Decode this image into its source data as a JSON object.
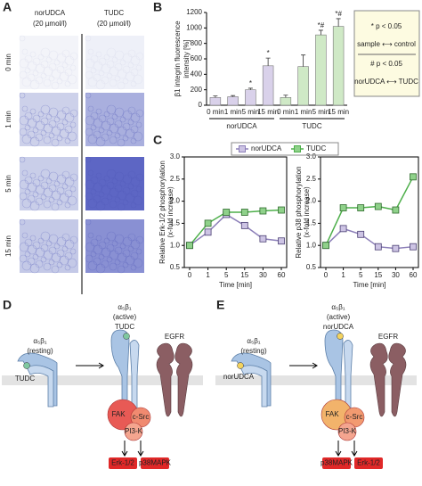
{
  "panel_labels": [
    "A",
    "B",
    "C",
    "D",
    "E"
  ],
  "panel_a": {
    "columns": [
      [
        "norUDCA",
        "(20 µmol/l)"
      ],
      [
        "TUDC",
        "(20 µmol/l)"
      ]
    ],
    "rows": [
      "0 min",
      "1 min",
      "5 min",
      "15 min"
    ]
  },
  "chart_data": [
    {
      "type": "bar",
      "ylabel_lines": [
        "β1 integrin fluorescence",
        "intensity [%]"
      ],
      "categories": [
        "0 min",
        "1 min",
        "5 min",
        "15 min"
      ],
      "series": [
        {
          "name": "norUDCA",
          "color": "#d9d1ea",
          "values": [
            100,
            110,
            200,
            510
          ],
          "errors": [
            20,
            15,
            20,
            100
          ],
          "annotations": [
            null,
            null,
            "*",
            "*"
          ]
        },
        {
          "name": "TUDC",
          "color": "#cfe9c6",
          "values": [
            100,
            500,
            910,
            1020
          ],
          "errors": [
            30,
            150,
            60,
            100
          ],
          "annotations": [
            null,
            null,
            "*#",
            "*#"
          ]
        }
      ],
      "ylim": [
        0,
        1200
      ],
      "yticks": [
        0,
        200,
        400,
        600,
        800,
        1000,
        1200
      ],
      "legend_box": [
        "* p < 0.05",
        "sample ⟷ control",
        "# p < 0.05",
        "norUDCA ⟷ TUDC"
      ]
    },
    {
      "type": "line",
      "ylabel_lines": [
        "Relative Erk-1/2 phosphorylation",
        "(x-fold increase)"
      ],
      "xlabel": "Time [min]",
      "categories": [
        "0",
        "1",
        "5",
        "15",
        "30",
        "60"
      ],
      "series": [
        {
          "name": "norUDCA",
          "color": "#8c7fb8",
          "fill": "#cdc4e4",
          "values": [
            1.0,
            1.3,
            1.7,
            1.45,
            1.15,
            1.1
          ]
        },
        {
          "name": "TUDC",
          "color": "#4daf4a",
          "fill": "#8fd18a",
          "values": [
            1.0,
            1.5,
            1.75,
            1.75,
            1.78,
            1.8
          ]
        }
      ],
      "ylim": [
        0.5,
        3.0
      ],
      "yticks": [
        0.5,
        {
          "value": 1,
          "label": "1.0"
        },
        1.5,
        {
          "value": 2,
          "label": "2.0"
        },
        2.5,
        {
          "value": 3,
          "label": "3.0"
        }
      ]
    },
    {
      "type": "line",
      "ylabel_lines": [
        "Relative p38 phosphorylation",
        "(x-fold increase)"
      ],
      "xlabel": "Time [min]",
      "categories": [
        "0",
        "1",
        "5",
        "15",
        "30",
        "60"
      ],
      "series": [
        {
          "name": "norUDCA",
          "color": "#8c7fb8",
          "fill": "#cdc4e4",
          "values": [
            1.0,
            1.38,
            1.25,
            0.97,
            0.93,
            0.97
          ]
        },
        {
          "name": "TUDC",
          "color": "#4daf4a",
          "fill": "#8fd18a",
          "values": [
            1.0,
            1.85,
            1.85,
            1.88,
            1.8,
            2.55
          ]
        }
      ],
      "ylim": [
        0.5,
        3.0
      ],
      "yticks": [
        0.5,
        {
          "value": 1,
          "label": "1.0"
        },
        1.5,
        {
          "value": 2,
          "label": "2.0"
        },
        2.5,
        {
          "value": 3,
          "label": "3.0"
        }
      ]
    }
  ],
  "panel_d": {
    "resting": [
      "α₅β₁",
      "(resting)"
    ],
    "active": [
      "α₅β₁",
      "(active)",
      "TUDC"
    ],
    "ligand": "TUDC",
    "receptor": "EGFR",
    "kinases": [
      "FAK",
      "c-Src",
      "PI3-K"
    ],
    "outputs": [
      "Erk-1/2",
      "p38MAPK"
    ]
  },
  "panel_e": {
    "resting": [
      "α₅β₁",
      "(resting)"
    ],
    "active": [
      "α₅β₁",
      "(active)",
      "norUDCA"
    ],
    "ligand": "norUDCA",
    "receptor": "EGFR",
    "kinases": [
      "FAK",
      "c-Src",
      "PI3-K"
    ],
    "outputs": [
      "p38MAPK",
      "Erk-1/2"
    ]
  }
}
